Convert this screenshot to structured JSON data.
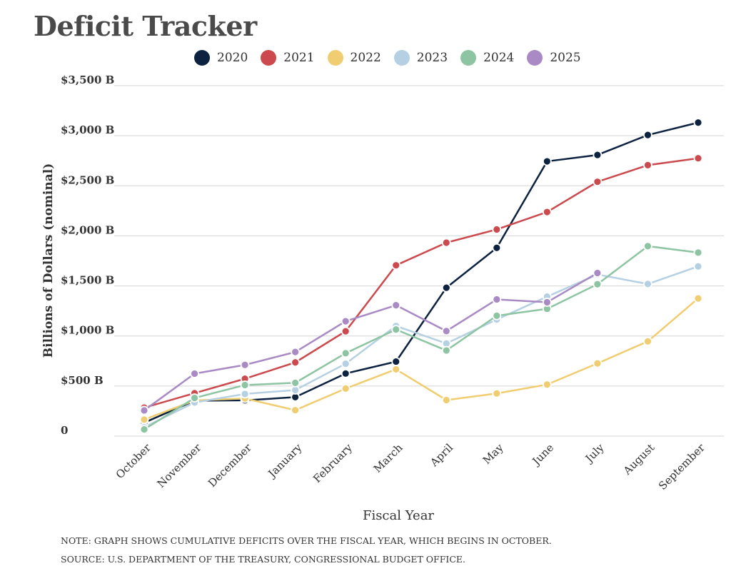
{
  "title": "Deficit Tracker",
  "note": "NOTE: GRAPH SHOWS CUMULATIVE DEFICITS OVER THE FISCAL YEAR, WHICH BEGINS IN OCTOBER.",
  "source": "SOURCE: U.S. DEPARTMENT OF THE TREASURY, CONGRESSIONAL BUDGET OFFICE.",
  "chart_data": {
    "type": "line",
    "title": "Deficit Tracker",
    "xlabel": "Fiscal Year",
    "ylabel": "Billions of Dollars (nominal)",
    "ylim": [
      0,
      3500
    ],
    "yticks": [
      0,
      500,
      1000,
      1500,
      2000,
      2500,
      3000,
      3500
    ],
    "ytick_labels": [
      "0",
      "$500 B",
      "$1,000 B",
      "$1,500 B",
      "$2,000 B",
      "$2,500 B",
      "$3,000 B",
      "$3,500 B"
    ],
    "categories": [
      "October",
      "November",
      "December",
      "January",
      "February",
      "March",
      "April",
      "May",
      "June",
      "July",
      "August",
      "September"
    ],
    "grid": "horizontal",
    "legend_position": "top",
    "series": [
      {
        "name": "2020",
        "color": "#0d2240",
        "values": [
          134,
          354,
          357,
          389,
          625,
          744,
          1482,
          1880,
          2744,
          2808,
          3007,
          3131
        ]
      },
      {
        "name": "2021",
        "color": "#cc4a4d",
        "values": [
          284,
          429,
          573,
          736,
          1047,
          1706,
          1932,
          2064,
          2238,
          2540,
          2706,
          2775
        ]
      },
      {
        "name": "2022",
        "color": "#f0cd70",
        "values": [
          165,
          356,
          376,
          259,
          475,
          667,
          360,
          426,
          515,
          726,
          946,
          1375
        ]
      },
      {
        "name": "2023",
        "color": "#b5d0e2",
        "values": [
          88,
          336,
          421,
          460,
          723,
          1100,
          925,
          1165,
          1393,
          1614,
          1519,
          1695
        ]
      },
      {
        "name": "2024",
        "color": "#8dc4a2",
        "values": [
          67,
          381,
          510,
          532,
          828,
          1065,
          855,
          1202,
          1271,
          1517,
          1897,
          1833
        ]
      },
      {
        "name": "2025",
        "color": "#a98ac5",
        "values": [
          257,
          624,
          711,
          840,
          1147,
          1307,
          1049,
          1365,
          1337,
          1629,
          null,
          null
        ]
      }
    ]
  }
}
